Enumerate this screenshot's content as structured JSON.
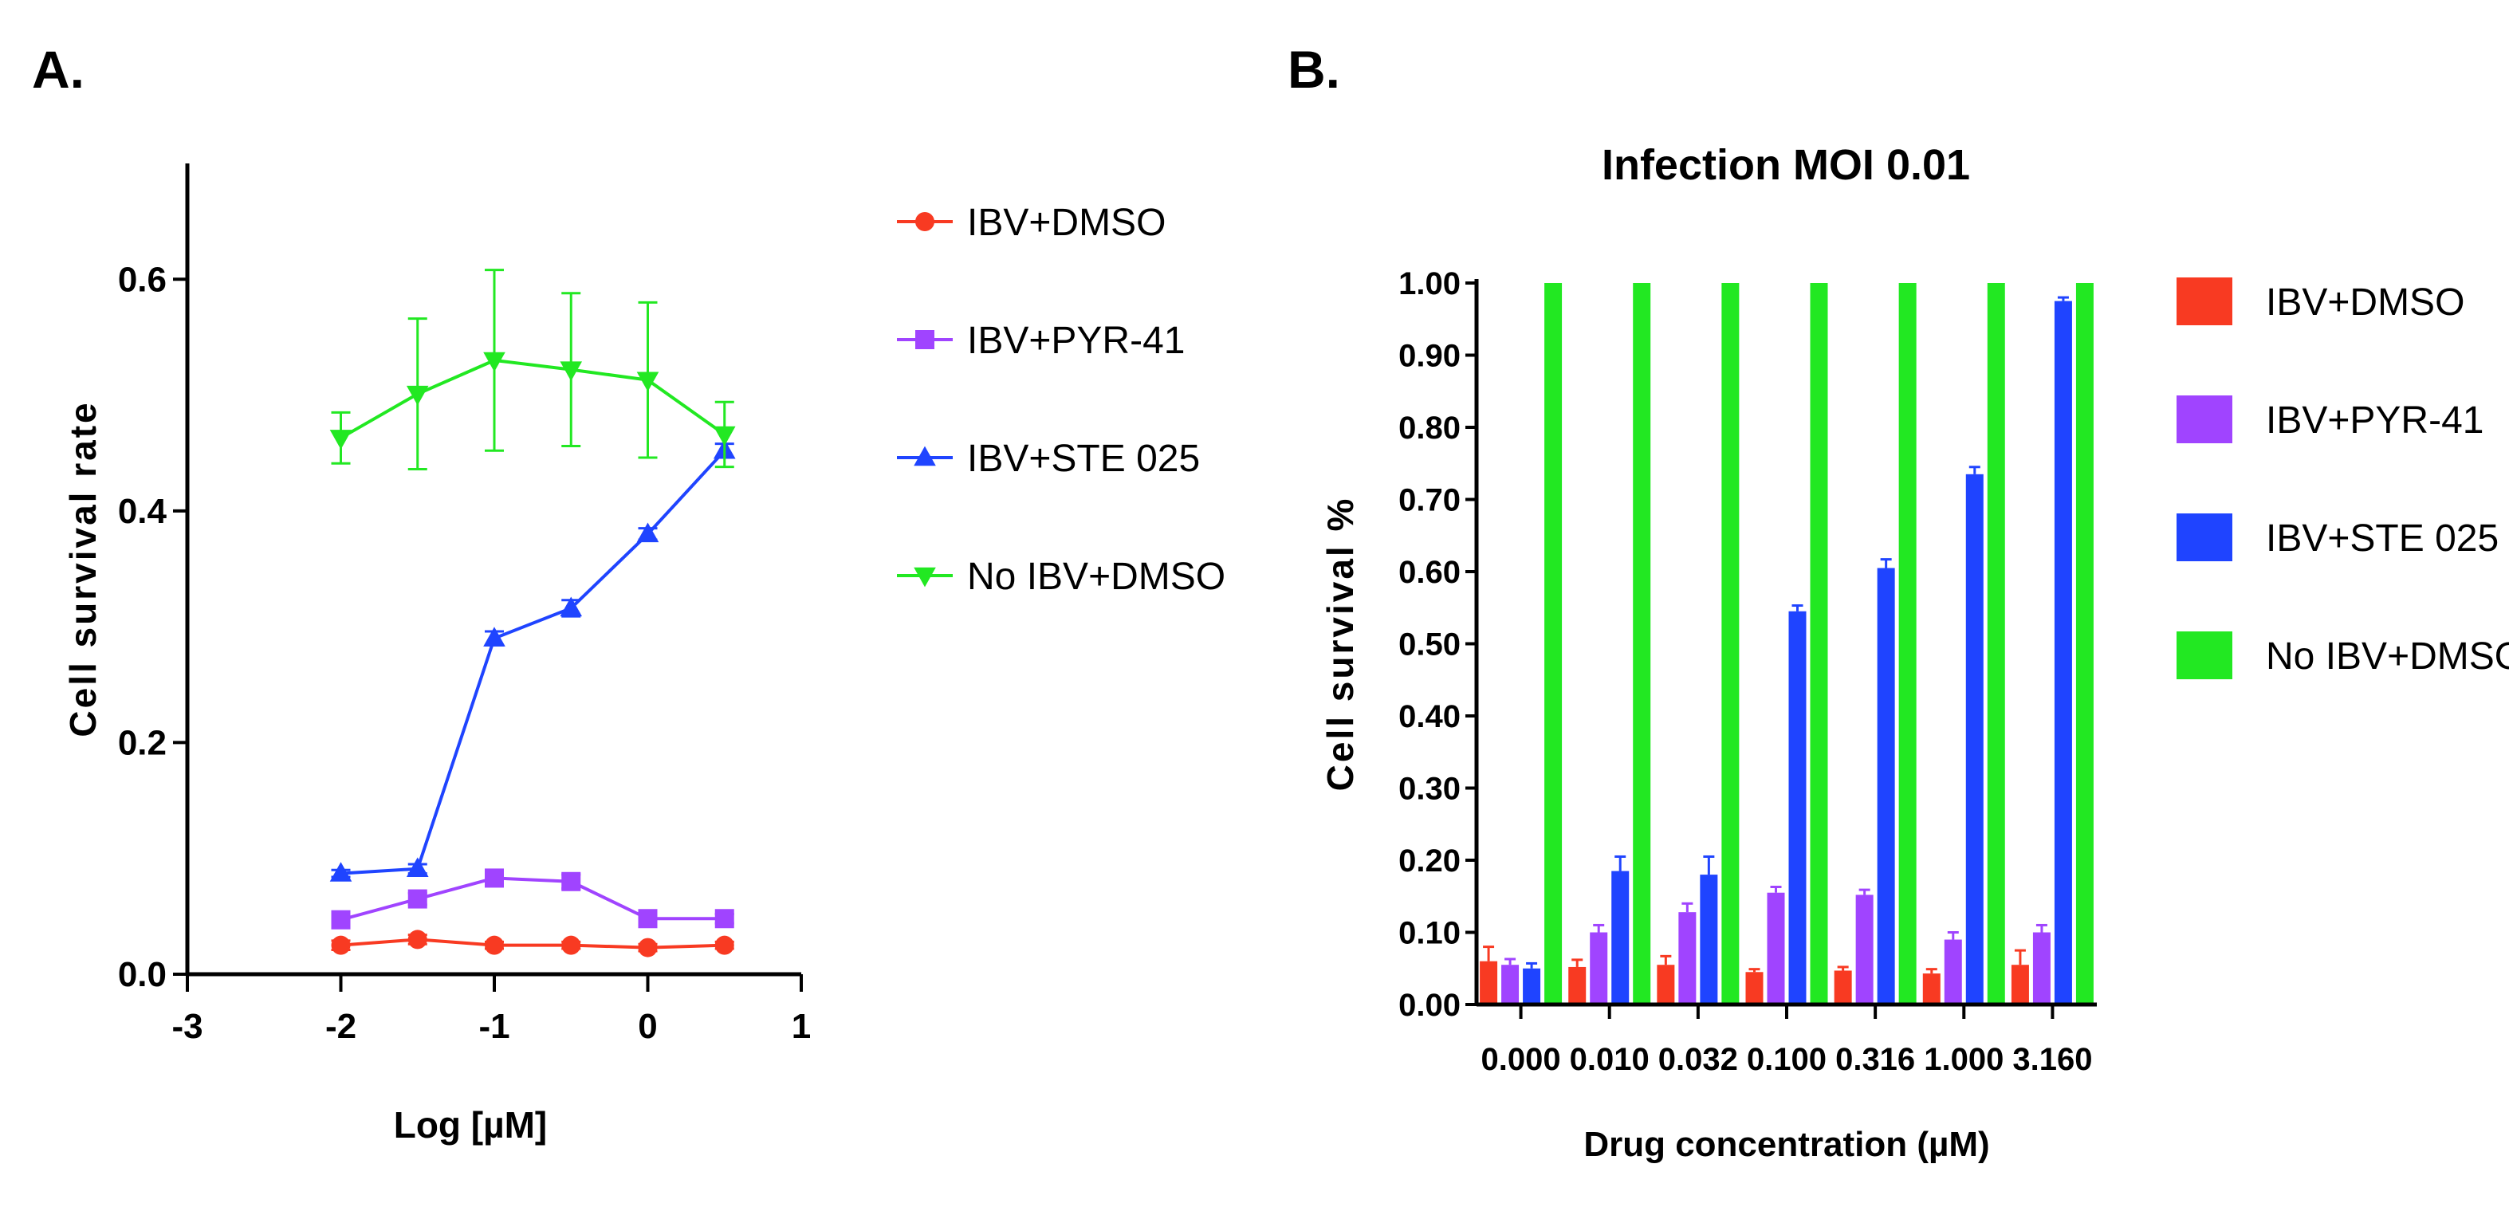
{
  "panels": {
    "a": {
      "label": "A."
    },
    "b": {
      "label": "B."
    }
  },
  "colors": {
    "red": "#f83a22",
    "purple": "#a044ff",
    "blue": "#1f44ff",
    "green": "#22e822",
    "axis": "#000000"
  },
  "chart_data": [
    {
      "panel": "A",
      "type": "line",
      "title": "",
      "xlabel": "Log [µM]",
      "ylabel": "Cell survival rate",
      "xlim": [
        -3,
        1
      ],
      "ylim": [
        0,
        0.7
      ],
      "xticks": [
        -3,
        -2,
        -1,
        0,
        1
      ],
      "xtick_labels": [
        "-3",
        "-2",
        "-1",
        "0",
        "1"
      ],
      "yticks": [
        0,
        0.2,
        0.4,
        0.6
      ],
      "ytick_labels": [
        "0.0",
        "0.2",
        "0.4",
        "0.6"
      ],
      "x": [
        -2,
        -1.5,
        -1,
        -0.5,
        0,
        0.5
      ],
      "legend_position": "right",
      "series": [
        {
          "name": "IBV+DMSO",
          "marker": "circle",
          "color": "#f83a22",
          "values": [
            0.025,
            0.03,
            0.025,
            0.025,
            0.023,
            0.025
          ],
          "errors": [
            0.004,
            0.004,
            0.003,
            0.003,
            0.003,
            0.003
          ]
        },
        {
          "name": "IBV+PYR-41",
          "marker": "square",
          "color": "#a044ff",
          "values": [
            0.047,
            0.065,
            0.083,
            0.08,
            0.048,
            0.048
          ],
          "errors": [
            0.004,
            0.005,
            0.007,
            0.006,
            0.004,
            0.004
          ]
        },
        {
          "name": "IBV+STE 025",
          "marker": "triangle-up",
          "color": "#1f44ff",
          "values": [
            0.087,
            0.091,
            0.29,
            0.316,
            0.38,
            0.452
          ],
          "errors": [
            0.003,
            0.004,
            0.006,
            0.007,
            0.005,
            0.006
          ]
        },
        {
          "name": "No IBV+DMSO",
          "marker": "triangle-down",
          "color": "#22e822",
          "values": [
            0.463,
            0.501,
            0.53,
            0.522,
            0.513,
            0.466
          ],
          "errors": [
            0.022,
            0.065,
            0.078,
            0.066,
            0.067,
            0.028
          ]
        }
      ]
    },
    {
      "panel": "B",
      "type": "bar",
      "title": "Infection MOI 0.01",
      "xlabel": "Drug concentration (µM)",
      "ylabel": "Cell survival  %",
      "ylim": [
        0,
        1
      ],
      "yticks": [
        0,
        0.1,
        0.2,
        0.3,
        0.4,
        0.5,
        0.6,
        0.7,
        0.8,
        0.9,
        1.0
      ],
      "ytick_labels": [
        "0.00",
        "0.10",
        "0.20",
        "0.30",
        "0.40",
        "0.50",
        "0.60",
        "0.70",
        "0.80",
        "0.90",
        "1.00"
      ],
      "categories": [
        "0.000",
        "0.010",
        "0.032",
        "0.100",
        "0.316",
        "1.000",
        "3.160"
      ],
      "legend_position": "right",
      "series": [
        {
          "name": "IBV+DMSO",
          "color": "#f83a22",
          "values": [
            0.06,
            0.052,
            0.055,
            0.045,
            0.047,
            0.043,
            0.055
          ],
          "errors": [
            0.02,
            0.01,
            0.012,
            0.004,
            0.005,
            0.006,
            0.02
          ]
        },
        {
          "name": "IBV+PYR-41",
          "color": "#a044ff",
          "values": [
            0.055,
            0.1,
            0.128,
            0.155,
            0.152,
            0.09,
            0.1
          ],
          "errors": [
            0.008,
            0.01,
            0.012,
            0.008,
            0.007,
            0.01,
            0.01
          ]
        },
        {
          "name": "IBV+STE 025",
          "color": "#1f44ff",
          "values": [
            0.05,
            0.185,
            0.18,
            0.545,
            0.605,
            0.735,
            0.975
          ],
          "errors": [
            0.007,
            0.02,
            0.025,
            0.008,
            0.012,
            0.01,
            0.005
          ]
        },
        {
          "name": "No IBV+DMSO",
          "color": "#22e822",
          "values": [
            1.0,
            1.0,
            1.0,
            1.0,
            1.0,
            1.0,
            1.0
          ],
          "errors": [
            0,
            0,
            0,
            0,
            0,
            0,
            0
          ]
        }
      ]
    }
  ]
}
